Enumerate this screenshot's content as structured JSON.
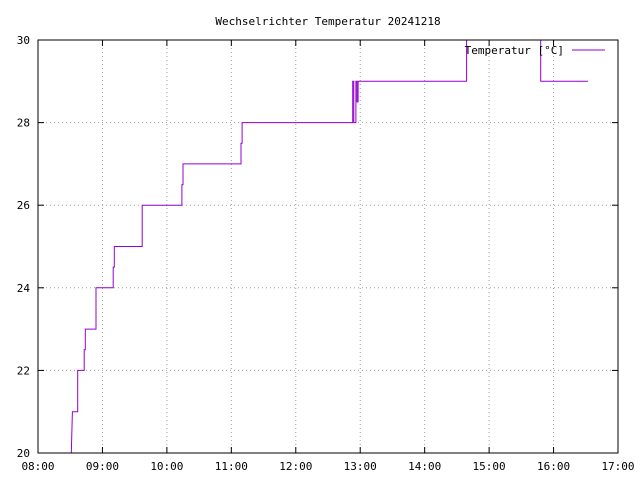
{
  "chart_data": {
    "type": "line",
    "title": "Wechselrichter Temperatur 20241218",
    "xlabel": "",
    "ylabel": "",
    "xlim": [
      "08:00",
      "17:00"
    ],
    "ylim": [
      20,
      30
    ],
    "x_ticks": [
      "08:00",
      "09:00",
      "10:00",
      "11:00",
      "12:00",
      "13:00",
      "14:00",
      "15:00",
      "16:00",
      "17:00"
    ],
    "y_ticks": [
      "20",
      "22",
      "24",
      "26",
      "28",
      "30"
    ],
    "grid": true,
    "legend_position": "top-right",
    "series": [
      {
        "name": "Temperatur [°C]",
        "color": "#9400d3",
        "step": true,
        "points": [
          [
            "08:31",
            20
          ],
          [
            "08:32",
            21
          ],
          [
            "08:37",
            21
          ],
          [
            "08:37",
            22
          ],
          [
            "08:43",
            22
          ],
          [
            "08:43",
            22.5
          ],
          [
            "08:44",
            22.5
          ],
          [
            "08:44",
            23
          ],
          [
            "08:54",
            23
          ],
          [
            "08:54",
            24
          ],
          [
            "09:10",
            24
          ],
          [
            "09:10",
            24.5
          ],
          [
            "09:11",
            24.5
          ],
          [
            "09:11",
            25
          ],
          [
            "09:37",
            25
          ],
          [
            "09:37",
            26
          ],
          [
            "10:14",
            26
          ],
          [
            "10:14",
            26.5
          ],
          [
            "10:15",
            26.5
          ],
          [
            "10:15",
            27
          ],
          [
            "11:09",
            27
          ],
          [
            "11:09",
            27.5
          ],
          [
            "11:10",
            27.5
          ],
          [
            "11:10",
            28
          ],
          [
            "12:53",
            28
          ],
          [
            "12:53",
            29
          ],
          [
            "12:54",
            29
          ],
          [
            "12:54",
            28
          ],
          [
            "12:56",
            28
          ],
          [
            "12:56",
            29
          ],
          [
            "12:57",
            29
          ],
          [
            "12:57",
            28.5
          ],
          [
            "12:58",
            28.5
          ],
          [
            "12:58",
            29
          ],
          [
            "14:39",
            29
          ],
          [
            "14:39",
            30
          ],
          [
            "15:48",
            30
          ],
          [
            "15:48",
            29
          ],
          [
            "16:32",
            29
          ]
        ]
      }
    ]
  }
}
